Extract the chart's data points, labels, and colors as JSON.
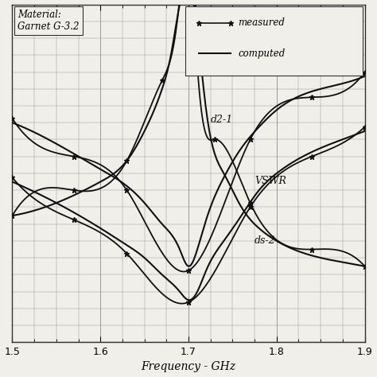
{
  "xlabel": "Frequency - GHz",
  "x_ticks": [
    1.5,
    1.6,
    1.7,
    1.8,
    1.9
  ],
  "annotation_material": "Material:\nGarnet G-3.2",
  "label_d21": "d2-1",
  "label_vswr": "VSWR",
  "label_ds2": "ds-2",
  "bg_color": "#f0efea",
  "line_color": "#111111",
  "grid_color": "#999999",
  "freq_d21_computed": [
    1.5,
    1.55,
    1.6,
    1.63,
    1.65,
    1.67,
    1.68,
    1.69,
    1.695,
    1.7,
    1.705,
    1.71,
    1.72,
    1.74,
    1.76,
    1.78,
    1.8,
    1.85,
    1.9
  ],
  "val_d21_computed": [
    0.3,
    0.33,
    0.38,
    0.43,
    0.5,
    0.6,
    0.68,
    0.8,
    0.9,
    1.1,
    0.9,
    0.75,
    0.55,
    0.4,
    0.32,
    0.27,
    0.24,
    0.2,
    0.18
  ],
  "freq_d21_measured": [
    1.5,
    1.57,
    1.63,
    1.67,
    1.695,
    1.7,
    1.705,
    1.73,
    1.77,
    1.84,
    1.9
  ],
  "val_d21_measured": [
    0.3,
    0.36,
    0.43,
    0.62,
    0.95,
    1.05,
    0.85,
    0.48,
    0.33,
    0.22,
    0.18
  ],
  "freq_vswr_computed": [
    1.5,
    1.55,
    1.6,
    1.63,
    1.65,
    1.67,
    1.69,
    1.7,
    1.71,
    1.72,
    1.74,
    1.76,
    1.78,
    1.8,
    1.85,
    1.9
  ],
  "val_vswr_computed": [
    0.52,
    0.47,
    0.41,
    0.37,
    0.33,
    0.28,
    0.22,
    0.18,
    0.22,
    0.29,
    0.39,
    0.46,
    0.51,
    0.55,
    0.6,
    0.63
  ],
  "freq_vswr_measured": [
    1.5,
    1.57,
    1.63,
    1.7,
    1.77,
    1.84,
    1.9
  ],
  "val_vswr_measured": [
    0.53,
    0.44,
    0.36,
    0.17,
    0.48,
    0.58,
    0.64
  ],
  "freq_ds2_computed": [
    1.5,
    1.55,
    1.6,
    1.63,
    1.65,
    1.67,
    1.69,
    1.7,
    1.71,
    1.72,
    1.74,
    1.76,
    1.78,
    1.8,
    1.85,
    1.9
  ],
  "val_ds2_computed": [
    0.38,
    0.33,
    0.27,
    0.23,
    0.2,
    0.16,
    0.12,
    0.1,
    0.12,
    0.17,
    0.24,
    0.3,
    0.36,
    0.4,
    0.46,
    0.5
  ],
  "freq_ds2_measured": [
    1.5,
    1.57,
    1.63,
    1.7,
    1.77,
    1.84,
    1.9
  ],
  "val_ds2_measured": [
    0.39,
    0.29,
    0.21,
    0.095,
    0.32,
    0.44,
    0.51
  ]
}
